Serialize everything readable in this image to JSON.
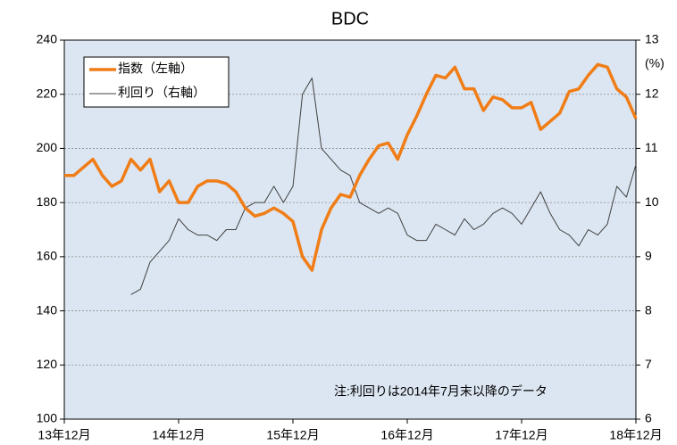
{
  "chart_data": {
    "type": "line",
    "title": "BDC",
    "y2_unit": "(%)",
    "annotation": "注:利回りは2014年7月末以降のデータ",
    "categories": [
      "13年12月",
      "14年1月",
      "14年2月",
      "14年3月",
      "14年4月",
      "14年5月",
      "14年6月",
      "14年7月",
      "14年8月",
      "14年9月",
      "14年10月",
      "14年11月",
      "14年12月",
      "15年1月",
      "15年2月",
      "15年3月",
      "15年4月",
      "15年5月",
      "15年6月",
      "15年7月",
      "15年8月",
      "15年9月",
      "15年10月",
      "15年11月",
      "15年12月",
      "16年1月",
      "16年2月",
      "16年3月",
      "16年4月",
      "16年5月",
      "16年6月",
      "16年7月",
      "16年8月",
      "16年9月",
      "16年10月",
      "16年11月",
      "16年12月",
      "17年1月",
      "17年2月",
      "17年3月",
      "17年4月",
      "17年5月",
      "17年6月",
      "17年7月",
      "17年8月",
      "17年9月",
      "17年10月",
      "17年11月",
      "17年12月",
      "18年1月",
      "18年2月",
      "18年3月",
      "18年4月",
      "18年5月",
      "18年6月",
      "18年7月",
      "18年8月",
      "18年9月",
      "18年10月",
      "18年11月",
      "18年12月"
    ],
    "xticks": [
      "13年12月",
      "14年12月",
      "15年12月",
      "16年12月",
      "17年12月",
      "18年12月"
    ],
    "series": [
      {
        "name": "指数（左軸）",
        "color": "#f07d16",
        "axis": "y",
        "values": [
          190,
          190,
          193,
          196,
          190,
          186,
          188,
          196,
          192,
          196,
          184,
          188,
          180,
          180,
          186,
          188,
          188,
          187,
          184,
          178,
          175,
          176,
          178,
          176,
          173,
          160,
          155,
          170,
          178,
          183,
          182,
          190,
          196,
          201,
          202,
          196,
          205,
          212,
          220,
          227,
          226,
          230,
          222,
          222,
          214,
          219,
          218,
          215,
          215,
          217,
          207,
          210,
          213,
          221,
          222,
          227,
          231,
          230,
          222,
          219,
          211
        ]
      },
      {
        "name": "利回り（右軸）",
        "color": "#404040",
        "axis": "y2",
        "values": [
          null,
          null,
          null,
          null,
          null,
          null,
          null,
          8.3,
          8.4,
          8.9,
          9.1,
          9.3,
          9.7,
          9.5,
          9.4,
          9.4,
          9.3,
          9.5,
          9.5,
          9.9,
          10.0,
          10.0,
          10.3,
          10.0,
          10.3,
          12.0,
          12.3,
          11.0,
          10.8,
          10.6,
          10.5,
          10.0,
          9.9,
          9.8,
          9.9,
          9.8,
          9.4,
          9.3,
          9.3,
          9.6,
          9.5,
          9.4,
          9.7,
          9.5,
          9.6,
          9.8,
          9.9,
          9.8,
          9.6,
          9.9,
          10.2,
          9.8,
          9.5,
          9.4,
          9.2,
          9.5,
          9.4,
          9.6,
          10.3,
          10.1,
          10.7
        ]
      }
    ],
    "ylim": [
      100,
      240
    ],
    "yticks": [
      100,
      120,
      140,
      160,
      180,
      200,
      220,
      240
    ],
    "y2lim": [
      6,
      13
    ],
    "y2ticks": [
      6,
      7,
      8,
      9,
      10,
      11,
      12,
      13
    ],
    "grid": true,
    "legend": "upper left",
    "background": "#dce6f2"
  }
}
